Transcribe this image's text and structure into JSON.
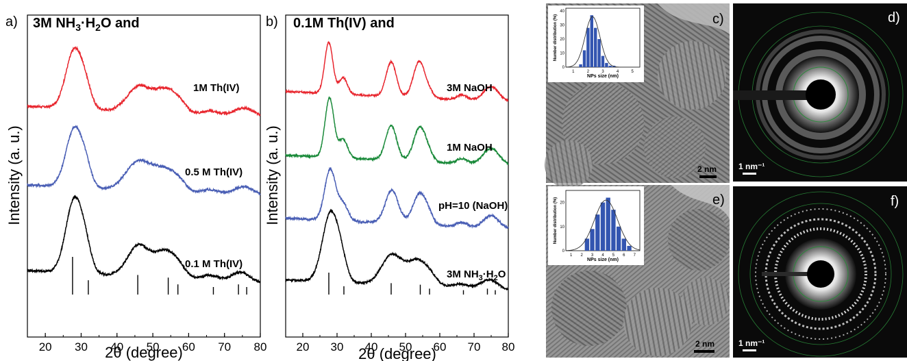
{
  "chart_data": [
    {
      "type": "line",
      "panel_label": "a)",
      "title": "3M NH3·H2O and",
      "xlabel": "2θ (degree)",
      "ylabel": "Intensity (a. u.)",
      "xlim": [
        15,
        80
      ],
      "xticks": [
        20,
        30,
        40,
        50,
        60,
        70,
        80
      ],
      "yticks_shown": false,
      "series": [
        {
          "name": "1M Th(IV)",
          "color": "#e8262e",
          "baseline": 0.86,
          "noise": 0.012,
          "peaks": [
            [
              28.2,
              0.62,
              2.4
            ],
            [
              31.5,
              0.12,
              1.5
            ],
            [
              46.0,
              0.26,
              3.2
            ],
            [
              53.5,
              0.24,
              3.2
            ],
            [
              57.5,
              0.07,
              2.0
            ],
            [
              66.0,
              0.05,
              2.5
            ],
            [
              75.5,
              0.1,
              3.0
            ]
          ]
        },
        {
          "name": "0.5 M Th(IV)",
          "color": "#4a5fb5",
          "baseline": 0.95,
          "noise": 0.012,
          "peaks": [
            [
              28.2,
              0.62,
              2.4
            ],
            [
              31.5,
              0.12,
              1.5
            ],
            [
              46.0,
              0.3,
              3.5
            ],
            [
              53.5,
              0.22,
              3.3
            ],
            [
              57.5,
              0.06,
              2.0
            ],
            [
              66.0,
              0.05,
              2.5
            ],
            [
              75.5,
              0.1,
              3.0
            ]
          ]
        },
        {
          "name": "0.1 M Th(IV)",
          "color": "#000000",
          "baseline": 0.92,
          "noise": 0.012,
          "peaks": [
            [
              28.2,
              0.78,
              2.4
            ],
            [
              31.5,
              0.14,
              1.5
            ],
            [
              46.0,
              0.32,
              3.0
            ],
            [
              53.5,
              0.27,
              3.0
            ],
            [
              57.5,
              0.07,
              2.0
            ],
            [
              66.0,
              0.05,
              2.5
            ],
            [
              74.5,
              0.1,
              2.5
            ]
          ]
        }
      ],
      "reference_lines": [
        [
          27.6,
          1.0
        ],
        [
          32.0,
          0.38
        ],
        [
          45.8,
          0.52
        ],
        [
          54.3,
          0.45
        ],
        [
          57.0,
          0.27
        ],
        [
          66.9,
          0.2
        ],
        [
          73.9,
          0.27
        ],
        [
          76.2,
          0.2
        ]
      ]
    },
    {
      "type": "line",
      "panel_label": "b)",
      "title": "0.1M Th(IV) and",
      "xlabel": "2θ (degree)",
      "ylabel": "Intensity (a. u.)",
      "xlim": [
        15,
        80
      ],
      "xticks": [
        20,
        30,
        40,
        50,
        60,
        70,
        80
      ],
      "yticks_shown": false,
      "series": [
        {
          "name": "3M NaOH",
          "color": "#e8262e",
          "baseline": 0.95,
          "noise": 0.01,
          "peaks": [
            [
              27.6,
              0.62,
              1.2
            ],
            [
              31.8,
              0.2,
              1.2
            ],
            [
              45.8,
              0.42,
              1.5
            ],
            [
              54.0,
              0.44,
              1.7
            ],
            [
              57.0,
              0.06,
              1.2
            ],
            [
              66.5,
              0.06,
              1.5
            ],
            [
              75.0,
              0.18,
              2.2
            ]
          ]
        },
        {
          "name": "1M NaOH",
          "color": "#1a8a3a",
          "baseline": 0.9,
          "noise": 0.012,
          "peaks": [
            [
              27.8,
              0.72,
              1.3
            ],
            [
              31.8,
              0.22,
              1.3
            ],
            [
              45.8,
              0.42,
              1.6
            ],
            [
              54.2,
              0.42,
              1.8
            ],
            [
              57.0,
              0.06,
              1.2
            ],
            [
              66.5,
              0.06,
              1.5
            ],
            [
              75.0,
              0.2,
              2.4
            ]
          ]
        },
        {
          "name": "pH=10 (NaOH)",
          "color": "#4a5fb5",
          "baseline": 0.82,
          "noise": 0.014,
          "peaks": [
            [
              28.0,
              0.62,
              1.6
            ],
            [
              31.8,
              0.2,
              1.4
            ],
            [
              46.0,
              0.4,
              1.9
            ],
            [
              54.2,
              0.38,
              2.0
            ],
            [
              57.0,
              0.06,
              1.2
            ],
            [
              66.5,
              0.05,
              1.5
            ],
            [
              75.0,
              0.15,
              2.2
            ]
          ]
        },
        {
          "name": "3M NH3·H2O",
          "color": "#000000",
          "baseline": 0.92,
          "noise": 0.012,
          "peaks": [
            [
              28.2,
              0.85,
              2.4
            ],
            [
              31.5,
              0.14,
              1.5
            ],
            [
              46.0,
              0.36,
              3.0
            ],
            [
              53.5,
              0.3,
              3.0
            ],
            [
              57.5,
              0.07,
              2.0
            ],
            [
              66.0,
              0.05,
              2.5
            ],
            [
              74.5,
              0.12,
              2.5
            ]
          ]
        }
      ],
      "reference_lines": [
        [
          27.6,
          1.0
        ],
        [
          32.0,
          0.38
        ],
        [
          45.8,
          0.52
        ],
        [
          54.3,
          0.45
        ],
        [
          57.0,
          0.27
        ],
        [
          66.9,
          0.2
        ],
        [
          73.9,
          0.27
        ],
        [
          76.2,
          0.2
        ]
      ]
    },
    {
      "type": "bar",
      "panel_label": "c)",
      "title": "",
      "xlabel": "NPs size (nm)",
      "ylabel": "Number distribution (%)",
      "xticks": [
        1,
        2,
        3,
        4,
        5
      ],
      "yticks": [
        0,
        10,
        20,
        30,
        40
      ],
      "xlim": [
        0.5,
        5.5
      ],
      "ylim": [
        0,
        42
      ],
      "x": [
        1.5,
        1.75,
        2.0,
        2.25,
        2.5,
        2.75,
        3.0,
        3.25,
        3.5,
        3.75
      ],
      "values": [
        2,
        12,
        28,
        37,
        28,
        20,
        8,
        3,
        1,
        1
      ],
      "fit": {
        "mean": 2.3,
        "sigma": 0.5,
        "peak": 36
      }
    },
    {
      "type": "bar",
      "panel_label": "e)",
      "title": "",
      "xlabel": "NPs size (nm)",
      "ylabel": "Number distribution (%)",
      "xticks": [
        1,
        2,
        3,
        4,
        5,
        6,
        7
      ],
      "yticks": [
        0,
        10,
        20
      ],
      "xlim": [
        0.5,
        7.5
      ],
      "ylim": [
        0,
        25
      ],
      "x": [
        2.5,
        3.0,
        3.5,
        4.0,
        4.5,
        5.0,
        5.5,
        6.0,
        6.5
      ],
      "values": [
        5,
        9,
        15,
        20,
        22,
        17,
        10,
        5,
        2
      ],
      "fit": {
        "mean": 4.3,
        "sigma": 1.1,
        "peak": 21
      }
    }
  ],
  "images": {
    "tem_c": {
      "label": "c)",
      "scale_bar": "2 nm"
    },
    "saed_d": {
      "label": "d)",
      "scale_bar": "1 nm⁻¹"
    },
    "tem_e": {
      "label": "e)",
      "scale_bar": "2 nm"
    },
    "saed_f": {
      "label": "f)",
      "scale_bar": "1 nm⁻¹"
    }
  }
}
